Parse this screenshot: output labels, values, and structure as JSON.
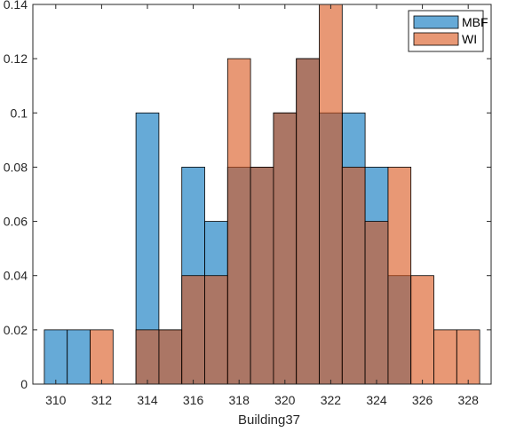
{
  "chart_data": {
    "type": "bar",
    "subtype": "overlaid-histogram",
    "title": "",
    "xlabel": "Building37",
    "ylabel": "",
    "xlim": [
      309,
      329
    ],
    "ylim": [
      0,
      0.14
    ],
    "xticks": [
      310,
      312,
      314,
      316,
      318,
      320,
      322,
      324,
      326,
      328
    ],
    "yticks": [
      0,
      0.02,
      0.04,
      0.06,
      0.08,
      0.1,
      0.12,
      0.14
    ],
    "ytick_labels": [
      "0",
      "0.02",
      "0.04",
      "0.06",
      "0.08",
      "0.1",
      "0.12",
      "0.14"
    ],
    "bin_width": 1,
    "bin_centers": [
      310,
      311,
      312,
      313,
      314,
      315,
      316,
      317,
      318,
      319,
      320,
      321,
      322,
      323,
      324,
      325,
      326,
      327,
      328
    ],
    "series": [
      {
        "name": "MBF",
        "color": "#0072BD",
        "values": [
          0.02,
          0.02,
          0,
          0,
          0.1,
          0.02,
          0.08,
          0.06,
          0.08,
          0.08,
          0.1,
          0.12,
          0.1,
          0.1,
          0.08,
          0.04,
          0,
          0,
          0
        ]
      },
      {
        "name": "WI",
        "color": "#D95319",
        "values": [
          0,
          0,
          0.02,
          0,
          0.02,
          0.02,
          0.04,
          0.04,
          0.12,
          0.08,
          0.1,
          0.12,
          0.14,
          0.08,
          0.06,
          0.08,
          0.04,
          0.02,
          0.02
        ]
      }
    ],
    "legend_position": "top-right",
    "grid": false
  }
}
